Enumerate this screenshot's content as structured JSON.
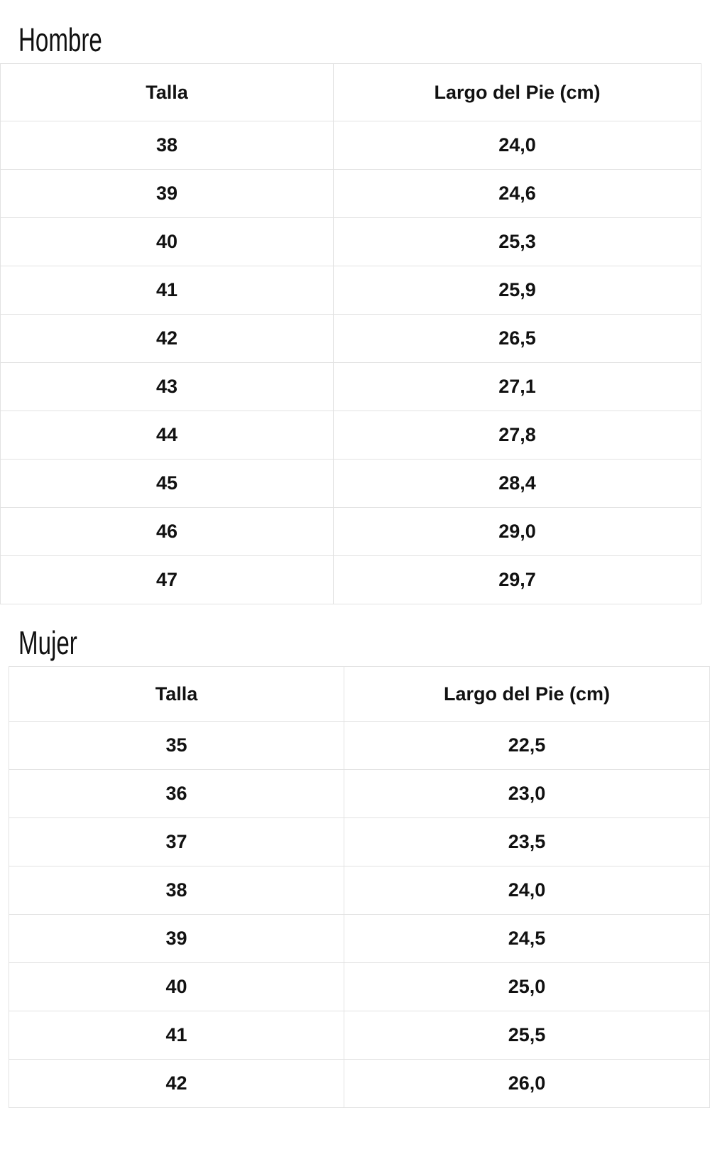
{
  "hombre": {
    "title": "Hombre",
    "headers": [
      "Talla",
      "Largo del Pie (cm)"
    ],
    "rows": [
      [
        "38",
        "24,0"
      ],
      [
        "39",
        "24,6"
      ],
      [
        "40",
        "25,3"
      ],
      [
        "41",
        "25,9"
      ],
      [
        "42",
        "26,5"
      ],
      [
        "43",
        "27,1"
      ],
      [
        "44",
        "27,8"
      ],
      [
        "45",
        "28,4"
      ],
      [
        "46",
        "29,0"
      ],
      [
        "47",
        "29,7"
      ]
    ]
  },
  "mujer": {
    "title": "Mujer",
    "headers": [
      "Talla",
      "Largo del Pie (cm)"
    ],
    "rows": [
      [
        "35",
        "22,5"
      ],
      [
        "36",
        "23,0"
      ],
      [
        "37",
        "23,5"
      ],
      [
        "38",
        "24,0"
      ],
      [
        "39",
        "24,5"
      ],
      [
        "40",
        "25,0"
      ],
      [
        "41",
        "25,5"
      ],
      [
        "42",
        "26,0"
      ]
    ]
  }
}
